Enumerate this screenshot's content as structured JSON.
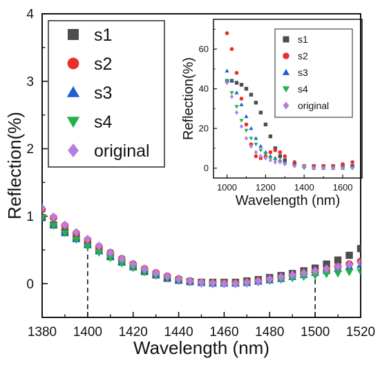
{
  "chart_data": [
    {
      "type": "scatter",
      "xlabel": "Wavelength (nm)",
      "ylabel": "Reflection(%)",
      "xlim": [
        1380,
        1520
      ],
      "ylim": [
        -0.5,
        4
      ],
      "xticks": [
        "1380",
        "1400",
        "1420",
        "1440",
        "1460",
        "1480",
        "1500",
        "1520"
      ],
      "yticks": [
        "0",
        "1",
        "2",
        "3",
        "4"
      ],
      "grid": false,
      "legend": "top-left",
      "markers": {
        "s1": "square",
        "s2": "circle",
        "s3": "triangle-up",
        "s4": "triangle-down",
        "original": "diamond"
      },
      "annotations": [
        {
          "type": "vertical-dashed-line",
          "x": 1400,
          "y_to": 0.6
        },
        {
          "type": "vertical-dashed-line",
          "x": 1500,
          "y_to": 0.15
        }
      ],
      "x": [
        1380,
        1385,
        1390,
        1395,
        1400,
        1405,
        1410,
        1415,
        1420,
        1425,
        1430,
        1435,
        1440,
        1445,
        1450,
        1455,
        1460,
        1465,
        1470,
        1475,
        1480,
        1485,
        1490,
        1495,
        1500,
        1505,
        1510,
        1515,
        1520
      ],
      "series": [
        {
          "name": "s1",
          "color": "#4d4d4d",
          "values": [
            0.98,
            0.87,
            0.77,
            0.68,
            0.58,
            0.49,
            0.4,
            0.32,
            0.25,
            0.18,
            0.13,
            0.08,
            0.05,
            0.03,
            0.02,
            0.02,
            0.02,
            0.02,
            0.04,
            0.06,
            0.09,
            0.12,
            0.15,
            0.19,
            0.23,
            0.29,
            0.35,
            0.42,
            0.52
          ]
        },
        {
          "name": "s2",
          "color": "#e8302c",
          "values": [
            1.1,
            0.98,
            0.86,
            0.75,
            0.65,
            0.55,
            0.46,
            0.37,
            0.29,
            0.22,
            0.16,
            0.11,
            0.07,
            0.04,
            0.02,
            0.01,
            0.01,
            0.01,
            0.02,
            0.04,
            0.06,
            0.09,
            0.12,
            0.15,
            0.18,
            0.21,
            0.25,
            0.29,
            0.33
          ]
        },
        {
          "name": "s3",
          "color": "#1f5fd1",
          "values": [
            0.98,
            0.87,
            0.75,
            0.66,
            0.57,
            0.48,
            0.4,
            0.32,
            0.25,
            0.19,
            0.13,
            0.09,
            0.05,
            0.03,
            0.01,
            0.0,
            0.0,
            0.0,
            0.01,
            0.03,
            0.05,
            0.07,
            0.1,
            0.13,
            0.16,
            0.19,
            0.22,
            0.25,
            0.28
          ]
        },
        {
          "name": "s4",
          "color": "#21b34a",
          "values": [
            0.98,
            0.86,
            0.75,
            0.65,
            0.55,
            0.46,
            0.38,
            0.3,
            0.23,
            0.17,
            0.12,
            0.08,
            0.04,
            0.02,
            0.0,
            -0.01,
            -0.01,
            -0.01,
            0.0,
            0.02,
            0.04,
            0.06,
            0.08,
            0.1,
            0.12,
            0.14,
            0.15,
            0.17,
            0.18
          ]
        },
        {
          "name": "original",
          "color": "#b57ee0",
          "values": [
            1.12,
            0.99,
            0.87,
            0.76,
            0.66,
            0.56,
            0.46,
            0.37,
            0.29,
            0.22,
            0.16,
            0.11,
            0.07,
            0.04,
            0.02,
            0.01,
            0.0,
            0.0,
            0.02,
            0.04,
            0.07,
            0.1,
            0.13,
            0.16,
            0.19,
            0.22,
            0.25,
            0.28,
            0.31
          ]
        }
      ]
    },
    {
      "type": "scatter",
      "xlabel": "Wavelength (nm)",
      "ylabel": "Reflection(%)",
      "xlim": [
        930,
        1700
      ],
      "ylim": [
        -5,
        75
      ],
      "xticks": [
        "1000",
        "1200",
        "1400",
        "1600"
      ],
      "yticks": [
        "0",
        "20",
        "40",
        "60"
      ],
      "grid": false,
      "legend": "top-right",
      "markers": {
        "s1": "square",
        "s2": "circle",
        "s3": "triangle-up",
        "s4": "triangle-down",
        "original": "diamond"
      },
      "series": [
        {
          "name": "s1",
          "color": "#4d4d4d",
          "x": [
            1000,
            1025,
            1050,
            1075,
            1100,
            1125,
            1150,
            1175,
            1200,
            1225,
            1250,
            1275,
            1300,
            1350,
            1400,
            1450,
            1500,
            1550,
            1600,
            1650
          ],
          "values": [
            44,
            44,
            43,
            42,
            40,
            37,
            33,
            28,
            22,
            16,
            10,
            6,
            4,
            2,
            1,
            1,
            1,
            1,
            1,
            1
          ]
        },
        {
          "name": "s2",
          "color": "#e8302c",
          "x": [
            1000,
            1025,
            1050,
            1075,
            1100,
            1125,
            1150,
            1175,
            1200,
            1225,
            1250,
            1275,
            1300,
            1350,
            1400,
            1450,
            1500,
            1550,
            1600,
            1650
          ],
          "values": [
            68,
            60,
            48,
            35,
            22,
            12,
            6,
            5,
            6,
            8,
            9,
            8,
            6,
            3,
            1,
            1,
            1,
            1,
            2,
            3
          ]
        },
        {
          "name": "s3",
          "color": "#1f5fd1",
          "x": [
            1000,
            1025,
            1050,
            1075,
            1100,
            1125,
            1150,
            1175,
            1200,
            1225,
            1250,
            1275,
            1300,
            1350,
            1400,
            1450,
            1500,
            1550,
            1600,
            1650
          ],
          "values": [
            49,
            44,
            38,
            32,
            26,
            20,
            15,
            11,
            8,
            6,
            5,
            4,
            3,
            2,
            1,
            0,
            0,
            0,
            0,
            1
          ]
        },
        {
          "name": "s4",
          "color": "#21b34a",
          "x": [
            1000,
            1025,
            1050,
            1075,
            1100,
            1125,
            1150,
            1175,
            1200,
            1225,
            1250,
            1275,
            1300,
            1350,
            1400,
            1450,
            1500,
            1550,
            1600,
            1650
          ],
          "values": [
            44,
            38,
            31,
            24,
            19,
            15,
            12,
            9,
            7,
            5,
            4,
            3,
            2,
            1,
            0,
            0,
            0,
            0,
            0,
            0
          ]
        },
        {
          "name": "original",
          "color": "#b57ee0",
          "x": [
            1000,
            1025,
            1050,
            1075,
            1100,
            1125,
            1150,
            1175,
            1200,
            1225,
            1250,
            1275,
            1300,
            1350,
            1400,
            1450,
            1500,
            1550,
            1600,
            1650
          ],
          "values": [
            43,
            36,
            28,
            21,
            15,
            11,
            8,
            6,
            5,
            4,
            3,
            3,
            2,
            1,
            1,
            0,
            0,
            0,
            0,
            0
          ]
        }
      ]
    }
  ]
}
